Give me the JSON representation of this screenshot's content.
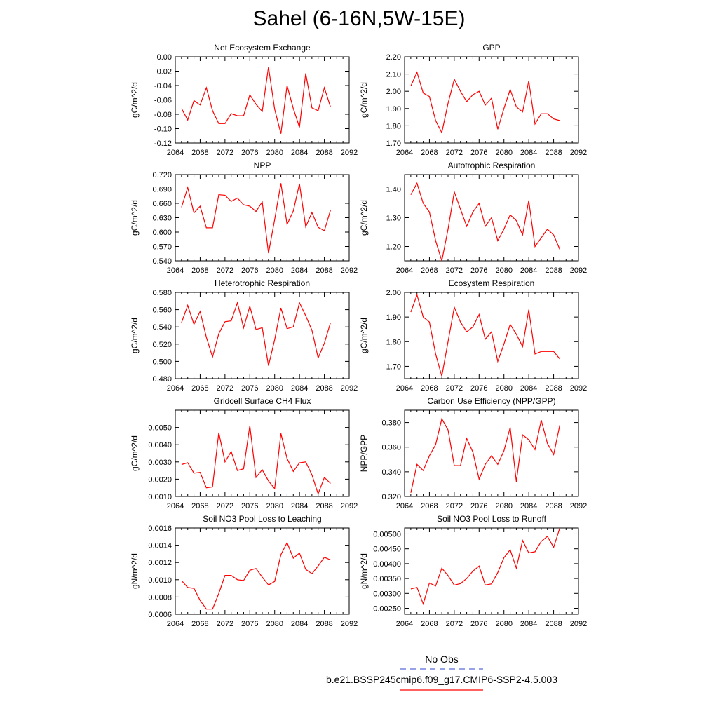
{
  "title": "Sahel (6-16N,5W-15E)",
  "colors": {
    "line": "#ff0000",
    "axis": "#000000",
    "obs": "#5b6bd6"
  },
  "legend": [
    {
      "label": "No Obs",
      "color": "#5b6bd6",
      "style": "dashed"
    },
    {
      "label": "b.e21.BSSP245cmip6.f09_g17.CMIP6-SSP2-4.5.003",
      "color": "#ff0000",
      "style": "solid"
    }
  ],
  "chart_data": [
    {
      "type": "line",
      "title": "Net Ecosystem Exchange",
      "ylabel": "gC/m^2/d",
      "xlim": [
        2064,
        2092
      ],
      "xticks": [
        "2064",
        "2068",
        "2072",
        "2076",
        "2080",
        "2084",
        "2088",
        "2092"
      ],
      "ylim": [
        -0.12,
        0.0
      ],
      "yticks": [
        "-0.12",
        "-0.10",
        "-0.08",
        "-0.06",
        "-0.04",
        "-0.02",
        "0.00"
      ],
      "x": [
        2065,
        2066,
        2067,
        2068,
        2069,
        2070,
        2071,
        2072,
        2073,
        2074,
        2075,
        2076,
        2077,
        2078,
        2079,
        2080,
        2081,
        2082,
        2083,
        2084,
        2085,
        2086,
        2087,
        2088,
        2089
      ],
      "values": [
        -0.072,
        -0.088,
        -0.061,
        -0.067,
        -0.043,
        -0.075,
        -0.093,
        -0.093,
        -0.079,
        -0.082,
        -0.082,
        -0.053,
        -0.066,
        -0.076,
        -0.014,
        -0.073,
        -0.107,
        -0.04,
        -0.072,
        -0.098,
        -0.023,
        -0.071,
        -0.075,
        -0.043,
        -0.07
      ]
    },
    {
      "type": "line",
      "title": "GPP",
      "ylabel": "gC/m^2/d",
      "xlim": [
        2064,
        2092
      ],
      "xticks": [
        "2064",
        "2068",
        "2072",
        "2076",
        "2080",
        "2084",
        "2088",
        "2092"
      ],
      "ylim": [
        1.7,
        2.2
      ],
      "yticks": [
        "1.70",
        "1.80",
        "1.90",
        "2.00",
        "2.10",
        "2.20"
      ],
      "x": [
        2065,
        2066,
        2067,
        2068,
        2069,
        2070,
        2071,
        2072,
        2073,
        2074,
        2075,
        2076,
        2077,
        2078,
        2079,
        2080,
        2081,
        2082,
        2083,
        2084,
        2085,
        2086,
        2087,
        2088,
        2089
      ],
      "values": [
        2.03,
        2.11,
        1.99,
        1.97,
        1.83,
        1.76,
        1.93,
        2.07,
        2.0,
        1.94,
        1.98,
        2.0,
        1.92,
        1.96,
        1.78,
        1.9,
        2.01,
        1.91,
        1.88,
        2.06,
        1.81,
        1.87,
        1.87,
        1.84,
        1.83
      ]
    },
    {
      "type": "line",
      "title": "NPP",
      "ylabel": "gC/m^2/d",
      "xlim": [
        2064,
        2092
      ],
      "xticks": [
        "2064",
        "2068",
        "2072",
        "2076",
        "2080",
        "2084",
        "2088",
        "2092"
      ],
      "ylim": [
        0.54,
        0.72
      ],
      "yticks": [
        "0.540",
        "0.570",
        "0.600",
        "0.630",
        "0.660",
        "0.690",
        "0.720"
      ],
      "x": [
        2065,
        2066,
        2067,
        2068,
        2069,
        2070,
        2071,
        2072,
        2073,
        2074,
        2075,
        2076,
        2077,
        2078,
        2079,
        2080,
        2081,
        2082,
        2083,
        2084,
        2085,
        2086,
        2087,
        2088,
        2089
      ],
      "values": [
        0.652,
        0.693,
        0.64,
        0.654,
        0.609,
        0.609,
        0.678,
        0.677,
        0.664,
        0.671,
        0.657,
        0.654,
        0.643,
        0.663,
        0.556,
        0.626,
        0.702,
        0.616,
        0.644,
        0.701,
        0.611,
        0.641,
        0.61,
        0.603,
        0.646
      ]
    },
    {
      "type": "line",
      "title": "Autotrophic Respiration",
      "ylabel": "gC/m^2/d",
      "xlim": [
        2064,
        2092
      ],
      "xticks": [
        "2064",
        "2068",
        "2072",
        "2076",
        "2080",
        "2084",
        "2088",
        "2092"
      ],
      "ylim": [
        1.15,
        1.45
      ],
      "yticks": [
        "1.20",
        "1.30",
        "1.40"
      ],
      "x": [
        2065,
        2066,
        2067,
        2068,
        2069,
        2070,
        2071,
        2072,
        2073,
        2074,
        2075,
        2076,
        2077,
        2078,
        2079,
        2080,
        2081,
        2082,
        2083,
        2084,
        2085,
        2086,
        2087,
        2088,
        2089
      ],
      "values": [
        1.38,
        1.42,
        1.35,
        1.32,
        1.22,
        1.15,
        1.26,
        1.39,
        1.33,
        1.27,
        1.32,
        1.35,
        1.27,
        1.3,
        1.22,
        1.26,
        1.31,
        1.29,
        1.24,
        1.36,
        1.2,
        1.23,
        1.26,
        1.24,
        1.19
      ]
    },
    {
      "type": "line",
      "title": "Heterotrophic Respiration",
      "ylabel": "gC/m^2/d",
      "xlim": [
        2064,
        2092
      ],
      "xticks": [
        "2064",
        "2068",
        "2072",
        "2076",
        "2080",
        "2084",
        "2088",
        "2092"
      ],
      "ylim": [
        0.48,
        0.58
      ],
      "yticks": [
        "0.480",
        "0.500",
        "0.520",
        "0.540",
        "0.560",
        "0.580"
      ],
      "x": [
        2065,
        2066,
        2067,
        2068,
        2069,
        2070,
        2071,
        2072,
        2073,
        2074,
        2075,
        2076,
        2077,
        2078,
        2079,
        2080,
        2081,
        2082,
        2083,
        2084,
        2085,
        2086,
        2087,
        2088,
        2089
      ],
      "values": [
        0.545,
        0.565,
        0.543,
        0.558,
        0.528,
        0.505,
        0.532,
        0.546,
        0.547,
        0.568,
        0.539,
        0.564,
        0.537,
        0.539,
        0.495,
        0.525,
        0.562,
        0.538,
        0.54,
        0.568,
        0.553,
        0.536,
        0.504,
        0.521,
        0.545
      ]
    },
    {
      "type": "line",
      "title": "Ecosystem Respiration",
      "ylabel": "gC/m^2/d",
      "xlim": [
        2064,
        2092
      ],
      "xticks": [
        "2064",
        "2068",
        "2072",
        "2076",
        "2080",
        "2084",
        "2088",
        "2092"
      ],
      "ylim": [
        1.65,
        2.0
      ],
      "yticks": [
        "1.70",
        "1.80",
        "1.90",
        "2.00"
      ],
      "x": [
        2065,
        2066,
        2067,
        2068,
        2069,
        2070,
        2071,
        2072,
        2073,
        2074,
        2075,
        2076,
        2077,
        2078,
        2079,
        2080,
        2081,
        2082,
        2083,
        2084,
        2085,
        2086,
        2087,
        2088,
        2089
      ],
      "values": [
        1.92,
        1.99,
        1.9,
        1.88,
        1.75,
        1.66,
        1.8,
        1.94,
        1.88,
        1.84,
        1.86,
        1.91,
        1.81,
        1.84,
        1.72,
        1.79,
        1.87,
        1.83,
        1.78,
        1.93,
        1.75,
        1.76,
        1.76,
        1.76,
        1.73
      ]
    },
    {
      "type": "line",
      "title": "Gridcell Surface CH4 Flux",
      "ylabel": "gC/m^2/d",
      "xlim": [
        2064,
        2092
      ],
      "xticks": [
        "2064",
        "2068",
        "2072",
        "2076",
        "2080",
        "2084",
        "2088",
        "2092"
      ],
      "ylim": [
        0.001,
        0.006
      ],
      "yticks": [
        "0.0010",
        "0.0020",
        "0.0030",
        "0.0040",
        "0.0050"
      ],
      "x": [
        2065,
        2066,
        2067,
        2068,
        2069,
        2070,
        2071,
        2072,
        2073,
        2074,
        2075,
        2076,
        2077,
        2078,
        2079,
        2080,
        2081,
        2082,
        2083,
        2084,
        2085,
        2086,
        2087,
        2088,
        2089
      ],
      "values": [
        0.00285,
        0.00295,
        0.00235,
        0.0024,
        0.0015,
        0.00155,
        0.0047,
        0.003,
        0.0036,
        0.0025,
        0.0026,
        0.0051,
        0.0021,
        0.00255,
        0.0019,
        0.00145,
        0.00465,
        0.0032,
        0.00245,
        0.00295,
        0.003,
        0.00225,
        0.00115,
        0.0021,
        0.00175
      ]
    },
    {
      "type": "line",
      "title": "Carbon Use Efficiency (NPP/GPP)",
      "ylabel": "NPP/GPP",
      "xlim": [
        2064,
        2092
      ],
      "xticks": [
        "2064",
        "2068",
        "2072",
        "2076",
        "2080",
        "2084",
        "2088",
        "2092"
      ],
      "ylim": [
        0.32,
        0.39
      ],
      "yticks": [
        "0.320",
        "0.340",
        "0.360",
        "0.380"
      ],
      "x": [
        2065,
        2066,
        2067,
        2068,
        2069,
        2070,
        2071,
        2072,
        2073,
        2074,
        2075,
        2076,
        2077,
        2078,
        2079,
        2080,
        2081,
        2082,
        2083,
        2084,
        2085,
        2086,
        2087,
        2088,
        2089
      ],
      "values": [
        0.323,
        0.346,
        0.341,
        0.353,
        0.362,
        0.383,
        0.374,
        0.345,
        0.345,
        0.367,
        0.356,
        0.334,
        0.346,
        0.353,
        0.346,
        0.357,
        0.376,
        0.332,
        0.37,
        0.366,
        0.358,
        0.382,
        0.363,
        0.354,
        0.378
      ]
    },
    {
      "type": "line",
      "title": "Soil NO3 Pool Loss to Leaching",
      "ylabel": "gN/m^2/d",
      "xlim": [
        2064,
        2092
      ],
      "xticks": [
        "2064",
        "2068",
        "2072",
        "2076",
        "2080",
        "2084",
        "2088",
        "2092"
      ],
      "ylim": [
        0.0006,
        0.0016
      ],
      "yticks": [
        "0.0006",
        "0.0008",
        "0.0010",
        "0.0012",
        "0.0014",
        "0.0016"
      ],
      "x": [
        2065,
        2066,
        2067,
        2068,
        2069,
        2070,
        2071,
        2072,
        2073,
        2074,
        2075,
        2076,
        2077,
        2078,
        2079,
        2080,
        2081,
        2082,
        2083,
        2084,
        2085,
        2086,
        2087,
        2088,
        2089
      ],
      "values": [
        0.00099,
        0.00091,
        0.0009,
        0.00076,
        0.00066,
        0.00066,
        0.00084,
        0.00105,
        0.00105,
        0.001,
        0.00099,
        0.00111,
        0.00113,
        0.00103,
        0.00094,
        0.00098,
        0.00129,
        0.00143,
        0.00125,
        0.00131,
        0.00112,
        0.00107,
        0.00116,
        0.00126,
        0.00123
      ]
    },
    {
      "type": "line",
      "title": "Soil NO3 Pool Loss to Runoff",
      "ylabel": "gN/m^2/d",
      "xlim": [
        2064,
        2092
      ],
      "xticks": [
        "2064",
        "2068",
        "2072",
        "2076",
        "2080",
        "2084",
        "2088",
        "2092"
      ],
      "ylim": [
        0.0023,
        0.0052
      ],
      "yticks": [
        "0.00250",
        "0.00300",
        "0.00350",
        "0.00400",
        "0.00450",
        "0.00500"
      ],
      "x": [
        2065,
        2066,
        2067,
        2068,
        2069,
        2070,
        2071,
        2072,
        2073,
        2074,
        2075,
        2076,
        2077,
        2078,
        2079,
        2080,
        2081,
        2082,
        2083,
        2084,
        2085,
        2086,
        2087,
        2088,
        2089
      ],
      "values": [
        0.00315,
        0.0032,
        0.00265,
        0.00335,
        0.00325,
        0.00385,
        0.0036,
        0.00328,
        0.00333,
        0.0035,
        0.00375,
        0.00392,
        0.00328,
        0.00332,
        0.0037,
        0.0042,
        0.00447,
        0.00385,
        0.00478,
        0.00436,
        0.0044,
        0.00475,
        0.00492,
        0.00455,
        0.0052
      ]
    }
  ]
}
